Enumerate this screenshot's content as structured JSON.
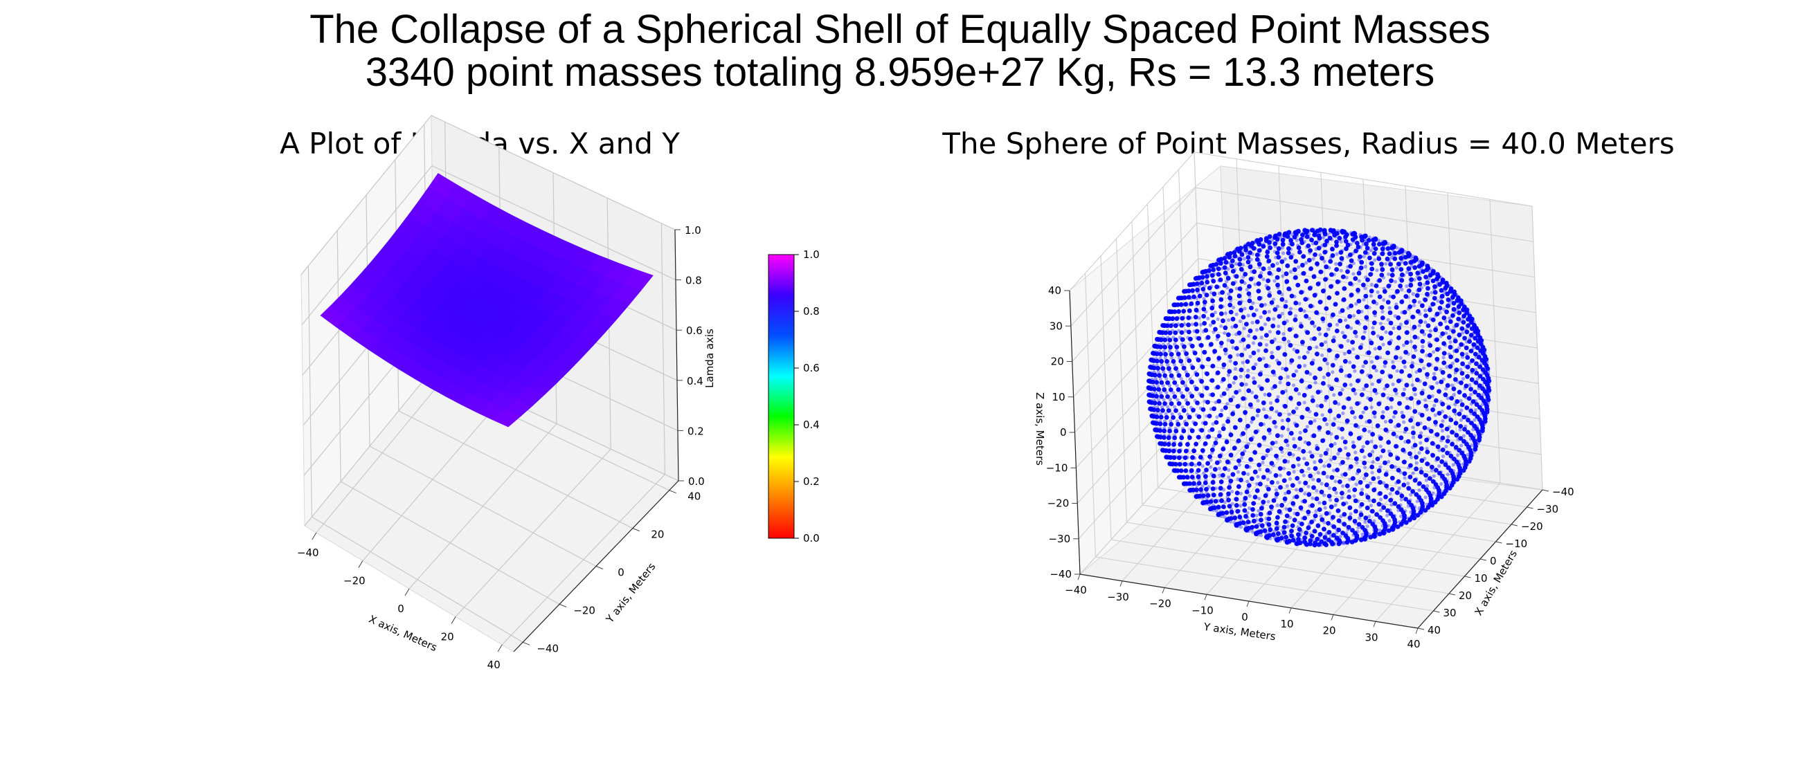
{
  "figure": {
    "title_line1": "The Collapse of a Spherical Shell of Equally Spaced Point Masses",
    "title_line2": "3340 point masses totaling 8.959e+27 Kg, Rs = 13.3 meters"
  },
  "chart_data": [
    {
      "type": "surface3d",
      "title": "A Plot of Lamda vs. X and Y",
      "xlabel": "X axis, Meters",
      "ylabel": "Y axis, Meters",
      "zlabel": "Lamda axis",
      "xlim": [
        -45,
        45
      ],
      "ylim": [
        -45,
        45
      ],
      "zlim": [
        0,
        1
      ],
      "x_ticks": [
        "−40",
        "−20",
        "0",
        "20",
        "40"
      ],
      "y_ticks": [
        "−40",
        "−20",
        "0",
        "20",
        "40"
      ],
      "z_ticks": [
        "0.0",
        "0.2",
        "0.4",
        "0.6",
        "0.8",
        "1.0"
      ],
      "surface_x_range": [
        -40,
        40
      ],
      "surface_y_range": [
        -40,
        40
      ],
      "surface_center_value": 0.77,
      "surface_corner_value": 0.83,
      "colormap": "gist_rainbow_r",
      "colorbar": {
        "ticks": [
          "0.0",
          "0.2",
          "0.4",
          "0.6",
          "0.8",
          "1.0"
        ],
        "range": [
          0,
          1
        ],
        "colors": [
          "#ff0000",
          "#ff8000",
          "#ffff00",
          "#00ff00",
          "#00ffff",
          "#0050ff",
          "#3a00ff",
          "#ff00ff"
        ]
      },
      "grid": true
    },
    {
      "type": "scatter3d",
      "title": "The Sphere of Point Masses, Radius = 40.0 Meters",
      "xlabel": "X axis, Meters",
      "ylabel": "Y axis, Meters",
      "zlabel": "Z axis, Meters",
      "x_ticks": [
        "−40",
        "−30",
        "−20",
        "−10",
        "0",
        "10",
        "20",
        "30",
        "40"
      ],
      "y_ticks": [
        "−40",
        "−30",
        "−20",
        "−10",
        "0",
        "10",
        "20",
        "30",
        "40"
      ],
      "z_ticks": [
        "−40",
        "−30",
        "−20",
        "−10",
        "0",
        "10",
        "20",
        "30",
        "40"
      ],
      "xlim": [
        -40,
        40
      ],
      "ylim": [
        -40,
        40
      ],
      "zlim": [
        -40,
        40
      ],
      "radius": 40.0,
      "point_count": 3340,
      "point_color": "#0000ff",
      "grid": true
    }
  ]
}
